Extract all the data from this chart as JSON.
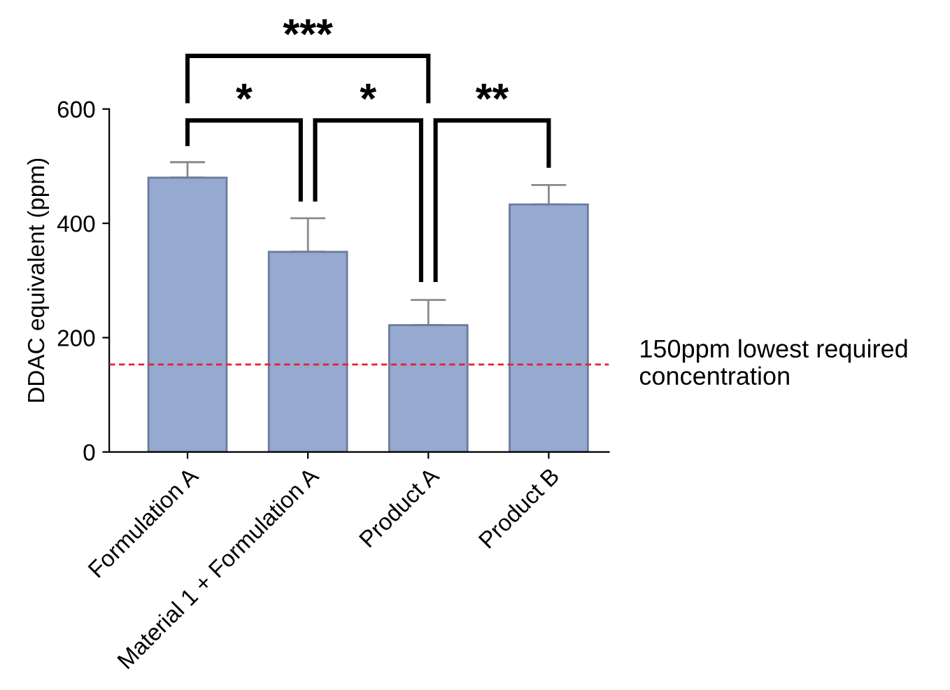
{
  "chart_data": {
    "type": "bar",
    "ylabel": "DDAC equivalent (ppm)",
    "categories": [
      "Formulation A",
      "Material 1 + Formulation A",
      "Product A",
      "Product B"
    ],
    "values": [
      480,
      350,
      222,
      433
    ],
    "errors": [
      [
        480,
        507
      ],
      [
        350,
        409
      ],
      [
        222,
        266
      ],
      [
        433,
        467
      ]
    ],
    "color": "#95a9d1",
    "ylim": [
      0,
      600
    ],
    "yticks": [
      0,
      200,
      400,
      600
    ],
    "grid": false,
    "ref_lines": [
      {
        "axis": "y",
        "value": 153,
        "label": "150ppm lowest required\nconcentration",
        "color": "#e8202a",
        "line_style": "dashed"
      }
    ],
    "annotations": [
      "*",
      "*",
      "**",
      "***"
    ]
  }
}
